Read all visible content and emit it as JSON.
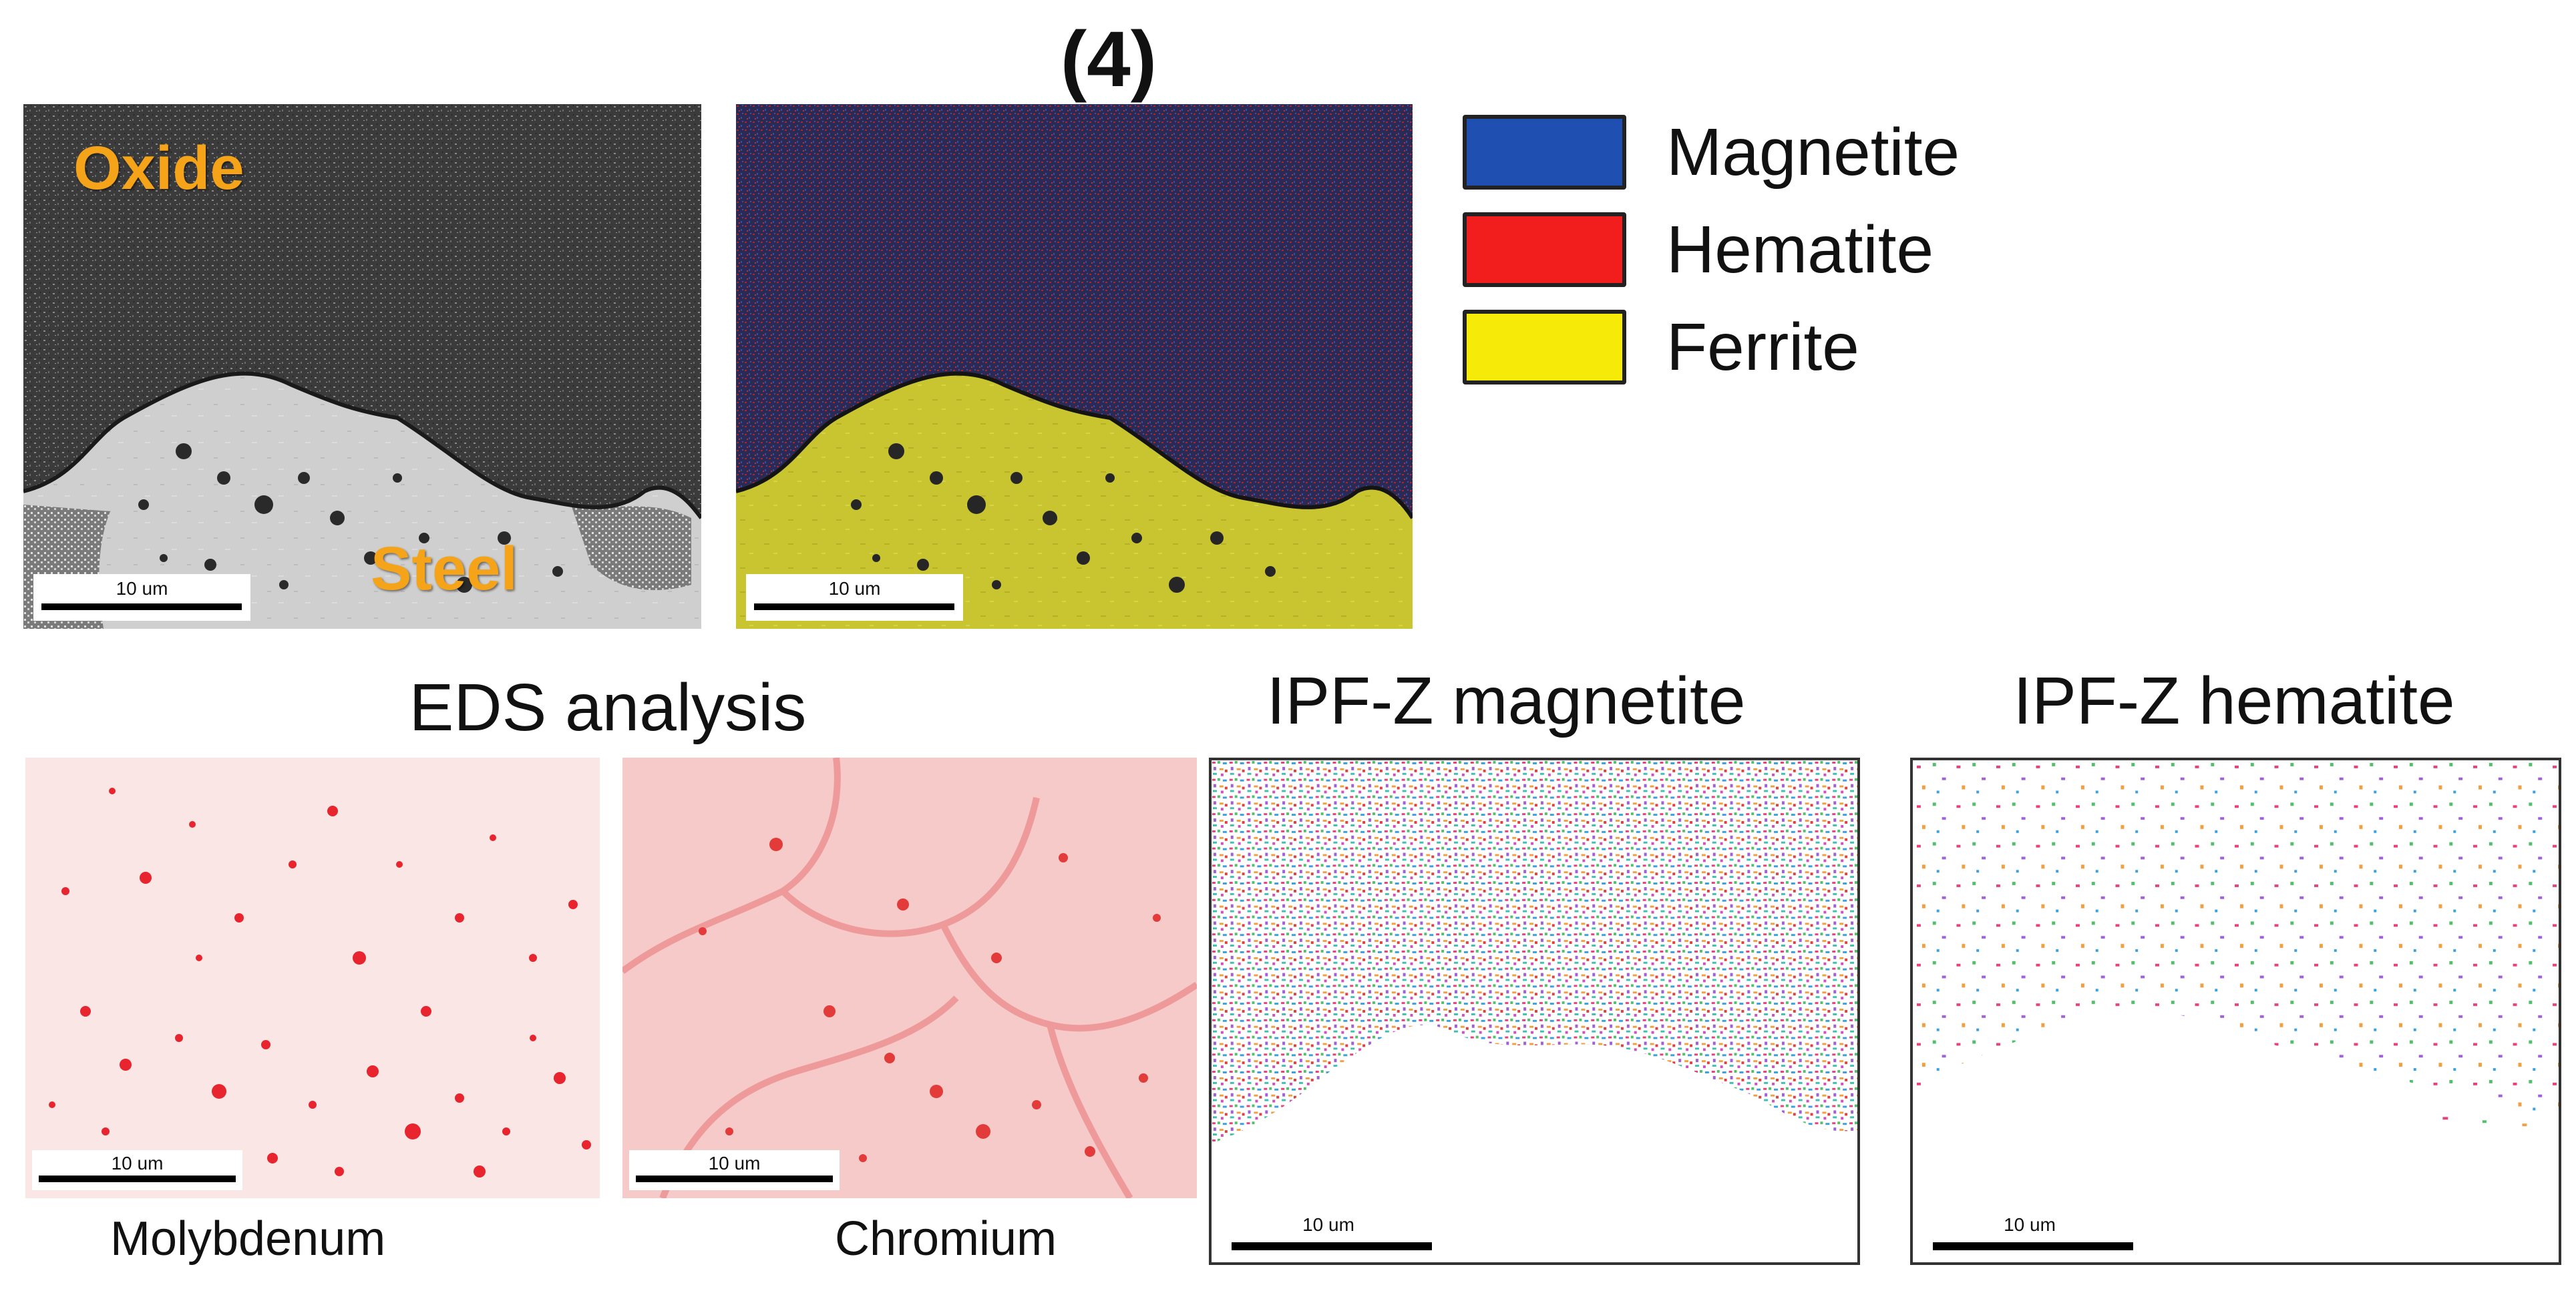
{
  "figure": {
    "label": "(4)",
    "top_left": {
      "oxide_label": "Oxide",
      "steel_label": "Steel",
      "scale": "10 um"
    },
    "top_middle": {
      "scale": "10 um"
    },
    "legend": [
      {
        "label": "Magnetite",
        "color": "#1f4fb0"
      },
      {
        "label": "Hematite",
        "color": "#f21d1d"
      },
      {
        "label": "Ferrite",
        "color": "#f6ea08"
      }
    ],
    "eds": {
      "title": "EDS analysis",
      "molybdenum": {
        "caption": "Molybdenum",
        "scale": "10 um"
      },
      "chromium": {
        "caption": "Chromium",
        "scale": "10 um"
      }
    },
    "ipf_magnetite": {
      "title": "IPF-Z magnetite",
      "scale": "10 um"
    },
    "ipf_hematite": {
      "title": "IPF-Z hematite",
      "scale": "10 um"
    }
  }
}
